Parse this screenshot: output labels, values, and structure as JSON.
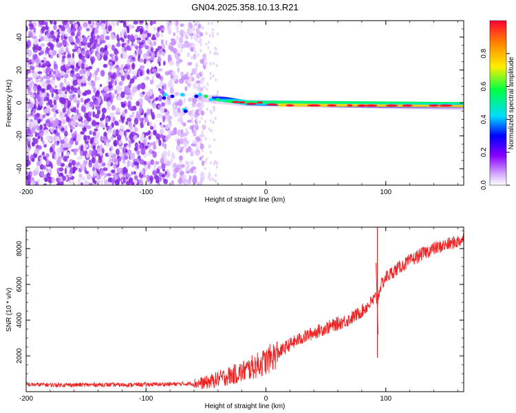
{
  "title": "GN04.2025.358.10.13.R21",
  "chart_data": [
    {
      "type": "heatmap",
      "xlabel": "Height of straight line (km)",
      "ylabel": "Frequency (Hz)",
      "xlim": [
        -200,
        165
      ],
      "ylim": [
        -50,
        50
      ],
      "x_ticks": [
        "-200",
        "-100",
        "0",
        "100"
      ],
      "y_ticks": [
        "-40",
        "-20",
        "0",
        "20",
        "40"
      ],
      "colorbar_label": "Normalized spectral amplitude",
      "colorbar_ticks": [
        "0.0",
        "0.2",
        "0.4",
        "0.6",
        "0.8"
      ],
      "colorbar_range": [
        0,
        1
      ],
      "colormap": [
        "#ffffff",
        "#d9b3ff",
        "#8800ff",
        "#0000ff",
        "#00ddff",
        "#00ff44",
        "#ffee00",
        "#ff8800",
        "#ff0033"
      ],
      "features": {
        "noise_region_x": [
          -200,
          -50
        ],
        "sparse_noise_x": [
          -60,
          -40
        ],
        "carrier_x": [
          -85,
          165
        ],
        "carrier_freq_start": 5,
        "carrier_freq_end": -2,
        "carrier_peak_amplitude": 1.0
      }
    },
    {
      "type": "line",
      "xlabel": "Height of straight line (km)",
      "ylabel": "SNR (10 * v/v)",
      "xlim": [
        -200,
        165
      ],
      "ylim": [
        0,
        9200
      ],
      "x_ticks": [
        "-200",
        "-100",
        "0",
        "100"
      ],
      "y_ticks": [
        "2000",
        "4000",
        "6000",
        "8000"
      ],
      "color": "#ee2222",
      "series": [
        {
          "x": [
            -200,
            -180,
            -160,
            -140,
            -120,
            -100,
            -80,
            -60,
            -50,
            -40,
            -30,
            -20,
            -10,
            0,
            10,
            20,
            30,
            40,
            50,
            60,
            70,
            80,
            88,
            92,
            93,
            95,
            100,
            110,
            120,
            130,
            140,
            150,
            160,
            165
          ],
          "values": [
            400,
            380,
            380,
            390,
            380,
            400,
            420,
            450,
            500,
            700,
            900,
            1100,
            1400,
            1700,
            2150,
            2650,
            3000,
            3300,
            3550,
            3800,
            4050,
            4500,
            5000,
            5300,
            5000,
            5800,
            6400,
            6900,
            7300,
            7700,
            8000,
            8200,
            8400,
            8550
          ]
        }
      ],
      "annotations": [
        {
          "x": 93,
          "y_max": 9200,
          "y_min": 1900
        }
      ]
    }
  ]
}
